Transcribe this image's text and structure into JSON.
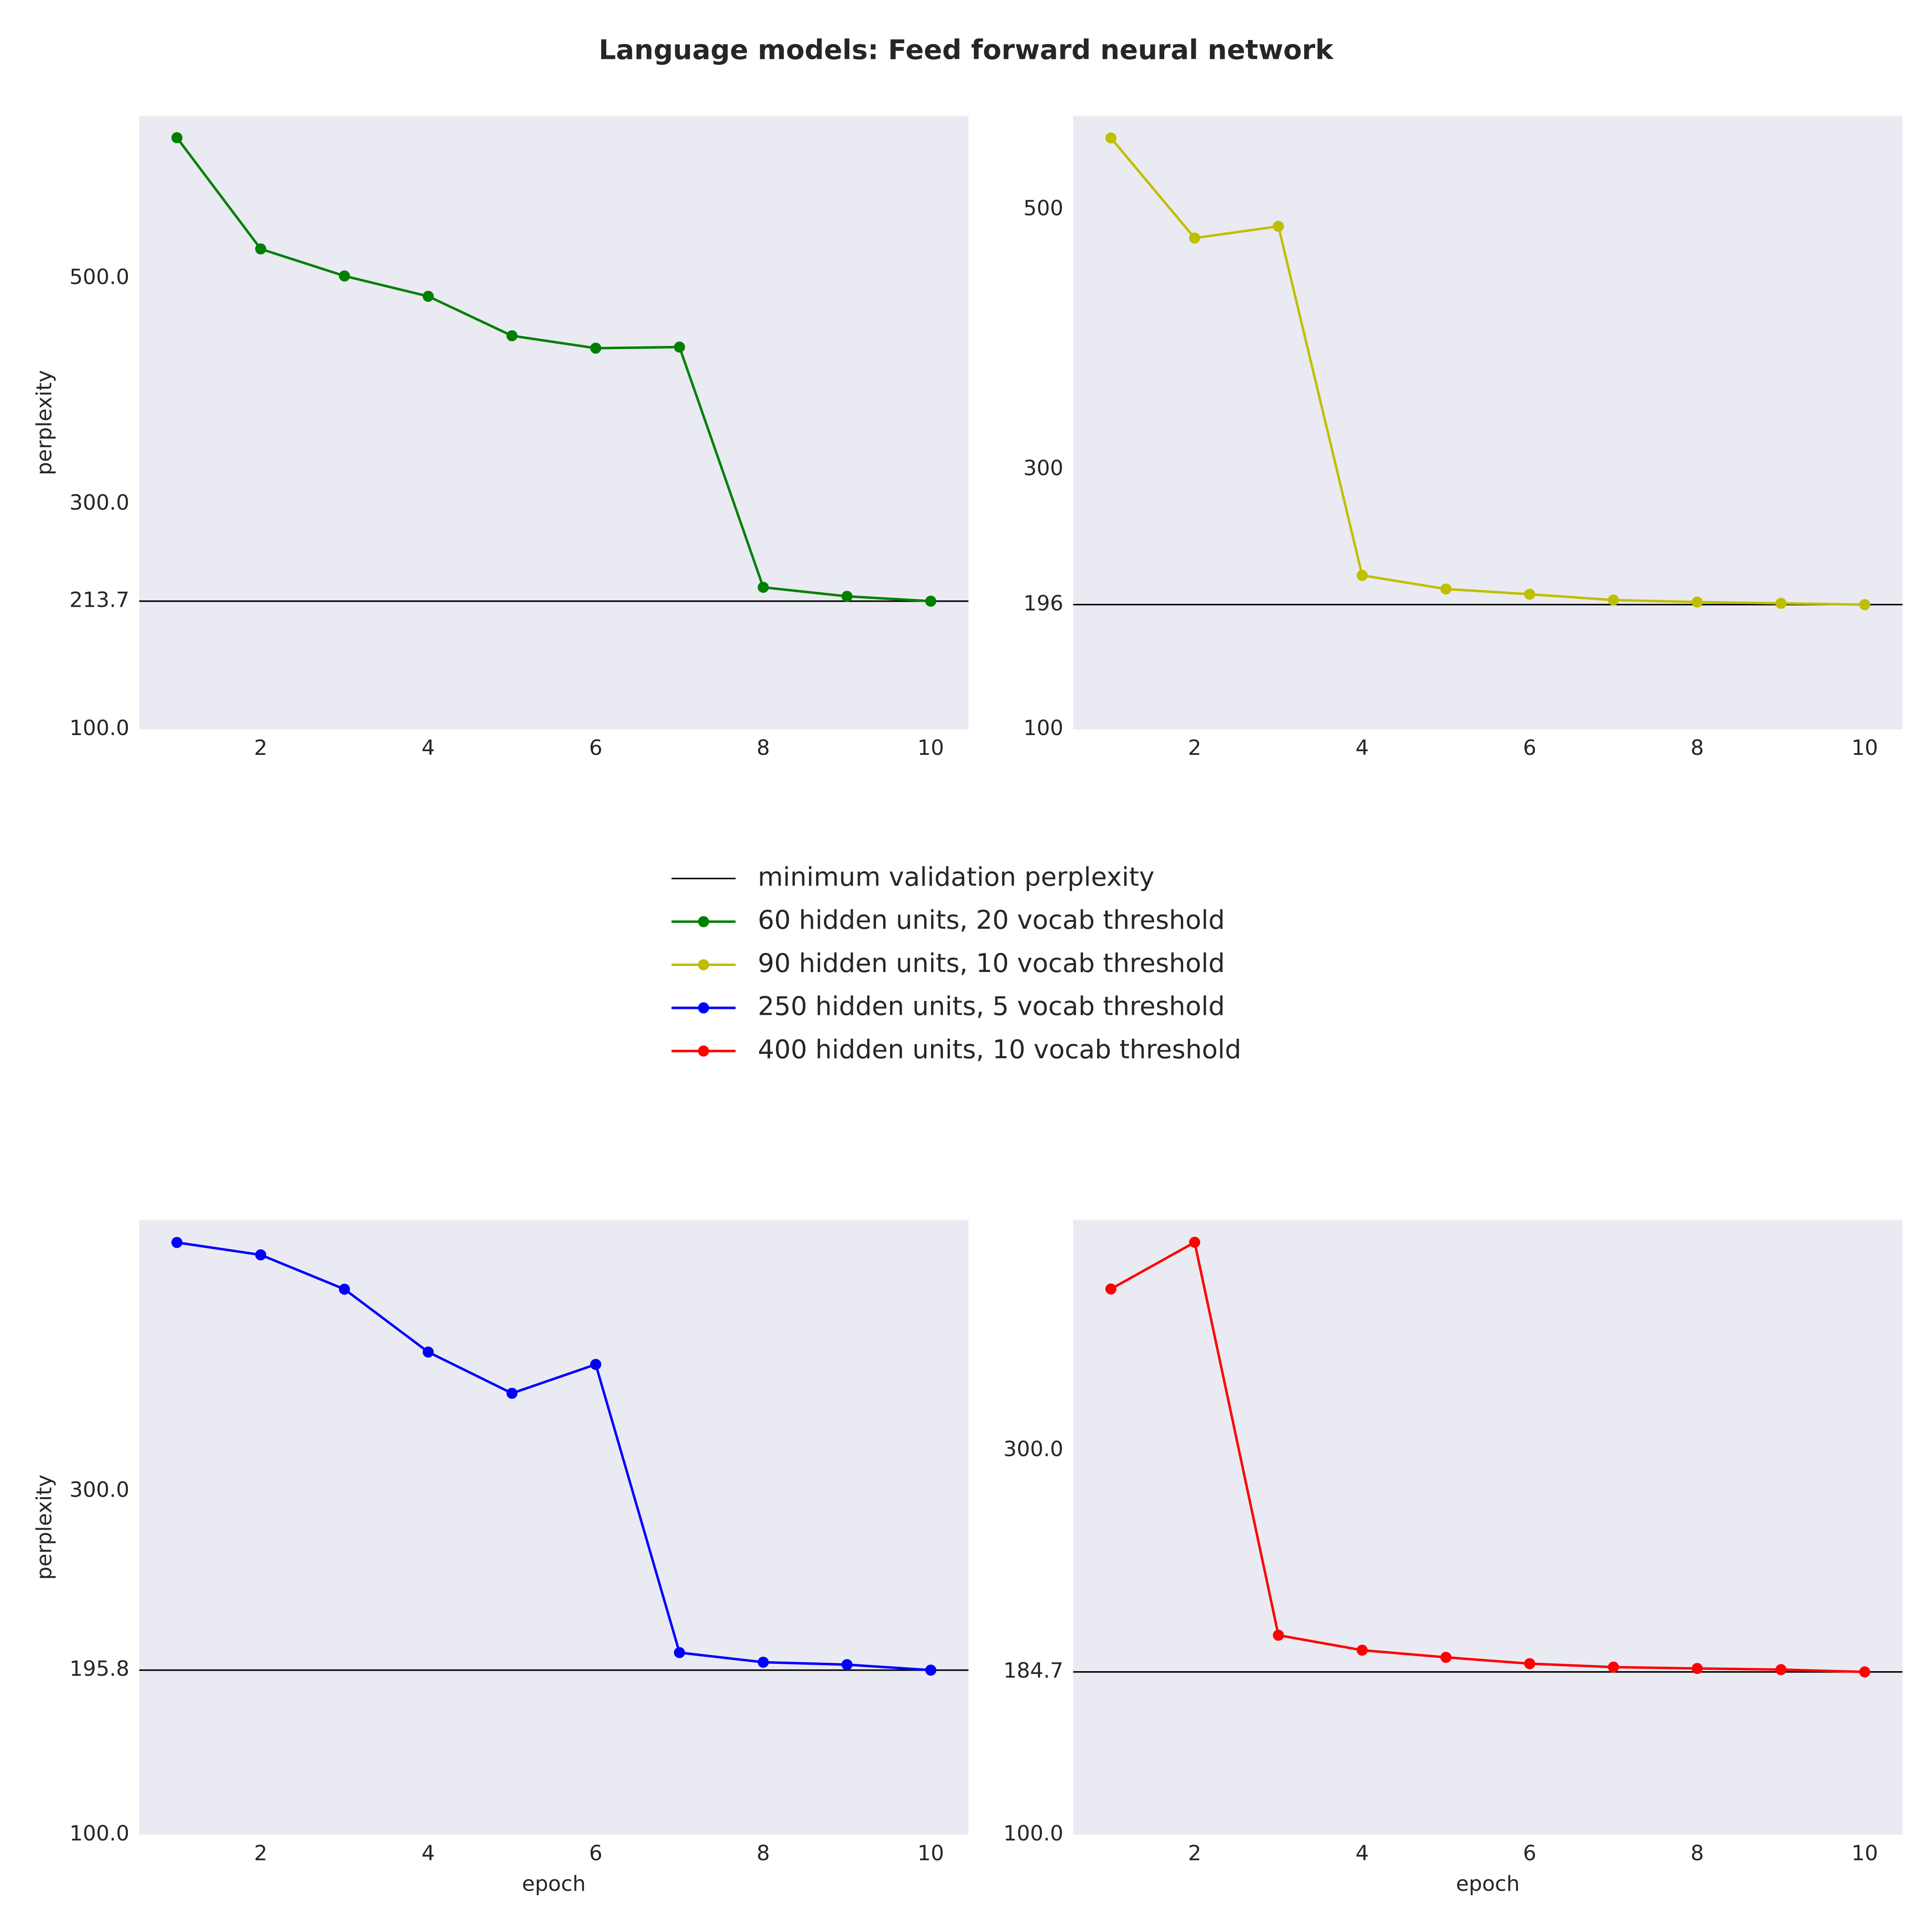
{
  "title": "Language models: Feed forward neural network",
  "chart_data": [
    {
      "type": "line",
      "ylabel": "perplexity",
      "x": [
        1,
        2,
        3,
        4,
        5,
        6,
        7,
        8,
        9,
        10
      ],
      "xlim": [
        0.55,
        10.45
      ],
      "xticks": [
        2,
        4,
        6,
        8,
        10
      ],
      "ylim": [
        100,
        644
      ],
      "yticks": [
        {
          "value": 100,
          "label": "100.0"
        },
        {
          "value": 213.7,
          "label": "213.7"
        },
        {
          "value": 300,
          "label": "300.0"
        },
        {
          "value": 500,
          "label": "500.0"
        }
      ],
      "reference_line": {
        "name": "minimum validation perplexity",
        "value": 213.7,
        "color": "#000000"
      },
      "series": [
        {
          "name": "60 hidden units, 20 vocab threshold",
          "color": "#008000",
          "values": [
            624.6,
            526,
            502,
            484,
            449,
            438,
            439,
            226,
            218,
            213.7
          ]
        }
      ]
    },
    {
      "type": "line",
      "x": [
        1,
        2,
        3,
        4,
        5,
        6,
        7,
        8,
        9,
        10
      ],
      "xlim": [
        0.55,
        10.45
      ],
      "xticks": [
        2,
        4,
        6,
        8,
        10
      ],
      "ylim": [
        100,
        572
      ],
      "yticks": [
        100,
        196,
        300,
        500
      ],
      "reference_line": {
        "value": 196,
        "color": "#000000"
      },
      "series": [
        {
          "name": "90 hidden units, 10 vocab threshold",
          "color": "#bfbf00",
          "values": [
            555,
            478,
            487,
            218.5,
            208,
            204,
            199.5,
            198,
            197,
            196
          ]
        }
      ]
    },
    {
      "type": "line",
      "ylabel": "perplexity",
      "xlabel": "epoch",
      "x": [
        1,
        2,
        3,
        4,
        5,
        6,
        7,
        8,
        9,
        10
      ],
      "xlim": [
        0.55,
        10.45
      ],
      "xticks": [
        2,
        4,
        6,
        8,
        10
      ],
      "ylim": [
        100,
        458
      ],
      "yticks": [
        {
          "value": 100,
          "label": "100.0"
        },
        {
          "value": 195.8,
          "label": "195.8"
        },
        {
          "value": 300,
          "label": "300.0"
        }
      ],
      "reference_line": {
        "value": 195.8,
        "color": "#000000"
      },
      "series": [
        {
          "name": "250 hidden units, 5 vocab threshold",
          "color": "#0000ff",
          "values": [
            444.8,
            437.6,
            417.6,
            381,
            357,
            373.8,
            206,
            200.4,
            199,
            195.8
          ]
        }
      ]
    },
    {
      "type": "line",
      "xlabel": "epoch",
      "x": [
        1,
        2,
        3,
        4,
        5,
        6,
        7,
        8,
        9,
        10
      ],
      "xlim": [
        0.55,
        10.45
      ],
      "xticks": [
        2,
        4,
        6,
        8,
        10
      ],
      "ylim": [
        100,
        420
      ],
      "yticks": [
        {
          "value": 100,
          "label": "100.0"
        },
        {
          "value": 184.7,
          "label": "184.7"
        },
        {
          "value": 300,
          "label": "300.0"
        }
      ],
      "reference_line": {
        "value": 184.7,
        "color": "#000000"
      },
      "series": [
        {
          "name": "400 hidden units, 10 vocab threshold",
          "color": "#ff0000",
          "values": [
            384,
            408.3,
            203.8,
            196,
            192.3,
            189,
            187.2,
            186.5,
            185.9,
            184.7
          ]
        }
      ]
    }
  ]
}
